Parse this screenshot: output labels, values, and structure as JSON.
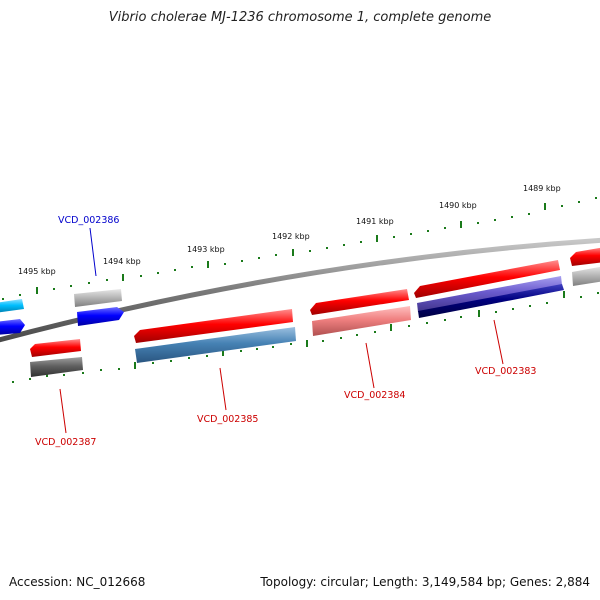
{
  "title": "Vibrio cholerae MJ-1236 chromosome 1, complete genome",
  "accession_text": "Accession: NC_012668",
  "stats_text": "Topology: circular; Length: 3,149,584 bp; Genes: 2,884",
  "scale_labels": [
    "1495 kbp",
    "1494 kbp",
    "1493 kbp",
    "1492 kbp",
    "1491 kbp",
    "1490 kbp",
    "1489 kbp"
  ],
  "gene_labels": [
    "VCD_002386",
    "VCD_002387",
    "VCD_002385",
    "VCD_002384",
    "VCD_002383"
  ],
  "colors": {
    "backbone": "#808080",
    "tick": "#1a7a1a",
    "red": "#ff0000",
    "light_red": "#f08080",
    "grey": "#b0b0b0",
    "dark_grey": "#606060",
    "blue": "#0000ff",
    "cyan": "#00bfff",
    "steel_blue": "#4682b4",
    "slate_blue": "#6a5acd",
    "navy": "#000080",
    "label_blue": "#0000cc",
    "label_red": "#cc0000"
  }
}
